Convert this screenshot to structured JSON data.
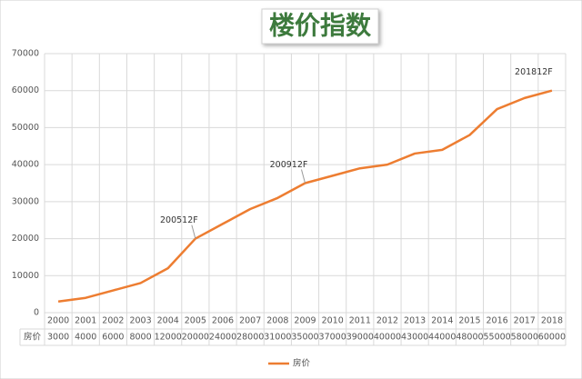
{
  "chart_data": {
    "type": "line",
    "title": "楼价指数",
    "categories": [
      "2000",
      "2001",
      "2002",
      "2003",
      "2004",
      "2005",
      "2006",
      "2007",
      "2008",
      "2009",
      "2010",
      "2011",
      "2012",
      "2013",
      "2014",
      "2015",
      "2016",
      "2017",
      "2018"
    ],
    "series": [
      {
        "name": "房价",
        "color": "#ed7d31",
        "values": [
          3000,
          4000,
          6000,
          8000,
          12000,
          20000,
          24000,
          28000,
          31000,
          35000,
          37000,
          39000,
          40000,
          43000,
          44000,
          48000,
          55000,
          58000,
          60000
        ]
      }
    ],
    "ylim": [
      0,
      70000
    ],
    "yticks": [
      0,
      10000,
      20000,
      30000,
      40000,
      50000,
      60000,
      70000
    ],
    "grid": true,
    "data_table": true,
    "legend": "bottom",
    "annotations": [
      {
        "label": "200512F",
        "category": "2005"
      },
      {
        "label": "200912F",
        "category": "2009"
      },
      {
        "label": "201812F",
        "category": "2018"
      }
    ]
  }
}
